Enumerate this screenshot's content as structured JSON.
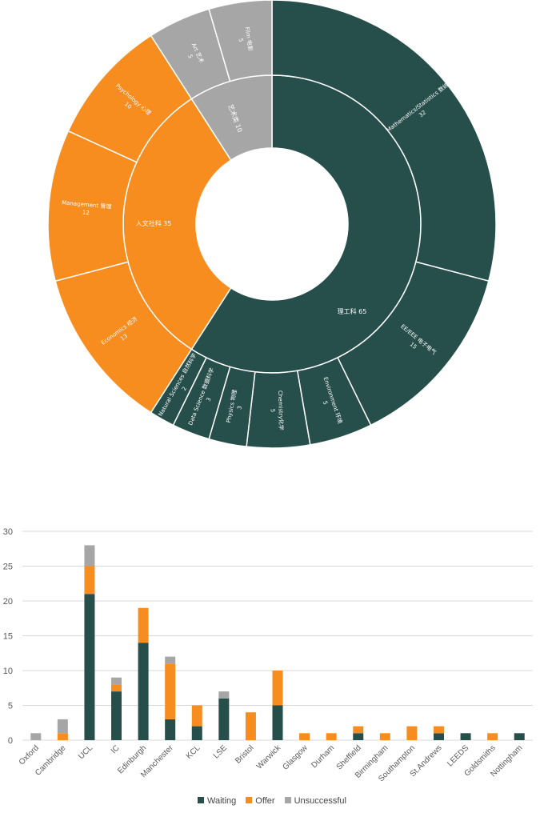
{
  "colors": {
    "stem": "#264e4a",
    "humanities": "#f78c1f",
    "arts": "#a6a6a6",
    "waiting": "#264e4a",
    "offer": "#f78c1f",
    "unsuccessful": "#a6a6a6"
  },
  "chart_data": [
    {
      "type": "sunburst",
      "title": "",
      "groups": [
        {
          "name": "理工科",
          "label": "理工科 65",
          "value": 65,
          "color": "#264e4a",
          "children": [
            {
              "label": "Mathematics/Statistics 数统",
              "value": 32
            },
            {
              "label": "EE/EEE 电子电气",
              "value": 15
            },
            {
              "label": "Environment 环境",
              "value": 5
            },
            {
              "label": "Chemistry化学",
              "value": 5
            },
            {
              "label": "Physics 物理",
              "value": 3
            },
            {
              "label": "Data Science 数据科学",
              "value": 3
            },
            {
              "label": "Natural Sciences 自然科学",
              "value": 2
            }
          ]
        },
        {
          "name": "人文社科",
          "label": "人文社科 35",
          "value": 35,
          "color": "#f78c1f",
          "children": [
            {
              "label": "Economics 经济",
              "value": 13
            },
            {
              "label": "Management 管理",
              "value": 12
            },
            {
              "label": "Psychology 心理",
              "value": 10
            }
          ]
        },
        {
          "name": "艺术类",
          "label": "艺术类 10",
          "value": 10,
          "color": "#a6a6a6",
          "children": [
            {
              "label": "Art 艺术",
              "value": 5
            },
            {
              "label": "Film 电影",
              "value": 5
            }
          ]
        }
      ]
    },
    {
      "type": "bar",
      "stacked": true,
      "title": "",
      "xlabel": "",
      "ylabel": "",
      "ylim": [
        0,
        30
      ],
      "yticks": [
        0,
        5,
        10,
        15,
        20,
        25,
        30
      ],
      "categories": [
        "Oxford",
        "Cambridge",
        "UCL",
        "IC",
        "Edinburgh",
        "Manchester",
        "KCL",
        "LSE",
        "Bristol",
        "Warwick",
        "Glasgow",
        "Durham",
        "Sheffield",
        "Birmingham",
        "Southampton",
        "St.Andrews",
        "LEEDS",
        "Goldsmiths",
        "Nottingham"
      ],
      "series": [
        {
          "name": "Waiting",
          "color": "#264e4a",
          "values": [
            0,
            0,
            21,
            7,
            14,
            3,
            2,
            6,
            0,
            5,
            0,
            0,
            1,
            0,
            0,
            1,
            1,
            0,
            1
          ]
        },
        {
          "name": "Offer",
          "color": "#f78c1f",
          "values": [
            0,
            1,
            4,
            1,
            5,
            8,
            3,
            0,
            4,
            5,
            1,
            1,
            1,
            1,
            2,
            1,
            0,
            1,
            0
          ]
        },
        {
          "name": "Unsuccessful",
          "color": "#a6a6a6",
          "values": [
            1,
            2,
            3,
            1,
            0,
            1,
            0,
            1,
            0,
            0,
            0,
            0,
            0,
            0,
            0,
            0,
            0,
            0,
            0
          ]
        }
      ],
      "legend_position": "bottom"
    }
  ]
}
